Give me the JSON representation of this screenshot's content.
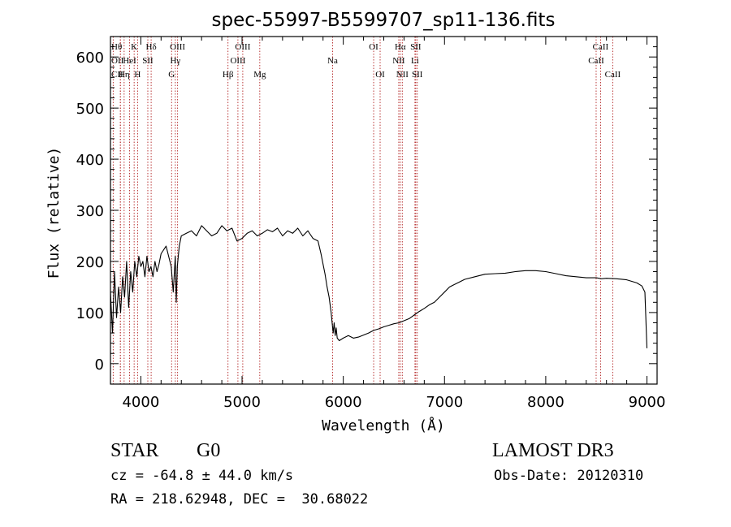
{
  "chart_data": {
    "type": "line",
    "title": "spec-55997-B5599707_sp11-136.fits",
    "xlabel": "Wavelength (Å)",
    "ylabel": "Flux (relative)",
    "xlim": [
      3700,
      9100
    ],
    "ylim": [
      -40,
      640
    ],
    "xticks": [
      4000,
      5000,
      6000,
      7000,
      8000,
      9000
    ],
    "yticks": [
      0,
      100,
      200,
      300,
      400,
      500,
      600
    ],
    "series": [
      {
        "name": "flux",
        "x": [
          3700,
          3720,
          3740,
          3760,
          3780,
          3800,
          3820,
          3840,
          3860,
          3880,
          3900,
          3920,
          3940,
          3960,
          3980,
          4000,
          4020,
          4040,
          4060,
          4080,
          4100,
          4120,
          4140,
          4160,
          4180,
          4200,
          4250,
          4300,
          4320,
          4340,
          4350,
          4360,
          4380,
          4400,
          4450,
          4500,
          4550,
          4600,
          4650,
          4700,
          4750,
          4800,
          4850,
          4900,
          4950,
          5000,
          5050,
          5100,
          5150,
          5200,
          5250,
          5300,
          5350,
          5400,
          5450,
          5500,
          5550,
          5600,
          5650,
          5700,
          5750,
          5780,
          5800,
          5820,
          5840,
          5860,
          5880,
          5890,
          5900,
          5910,
          5920,
          5930,
          5940,
          5960,
          6000,
          6050,
          6100,
          6150,
          6200,
          6250,
          6300,
          6350,
          6400,
          6450,
          6500,
          6550,
          6600,
          6650,
          6700,
          6750,
          6800,
          6850,
          6900,
          6950,
          7000,
          7050,
          7100,
          7150,
          7200,
          7300,
          7400,
          7500,
          7600,
          7700,
          7800,
          7900,
          8000,
          8100,
          8200,
          8300,
          8400,
          8500,
          8550,
          8600,
          8700,
          8800,
          8900,
          8950,
          8980,
          9000
        ],
        "values": [
          140,
          60,
          180,
          90,
          150,
          100,
          170,
          130,
          200,
          110,
          180,
          140,
          200,
          170,
          210,
          190,
          200,
          170,
          210,
          180,
          190,
          170,
          200,
          180,
          195,
          215,
          230,
          190,
          140,
          210,
          120,
          190,
          230,
          250,
          255,
          260,
          250,
          270,
          260,
          250,
          255,
          270,
          260,
          265,
          240,
          245,
          255,
          260,
          250,
          255,
          262,
          258,
          265,
          250,
          260,
          255,
          265,
          250,
          260,
          245,
          240,
          215,
          195,
          175,
          150,
          130,
          100,
          80,
          60,
          80,
          55,
          70,
          50,
          45,
          50,
          55,
          50,
          52,
          56,
          60,
          65,
          68,
          72,
          75,
          78,
          80,
          84,
          88,
          95,
          102,
          108,
          115,
          120,
          130,
          140,
          150,
          155,
          160,
          165,
          170,
          175,
          176,
          177,
          180,
          182,
          182,
          180,
          176,
          172,
          170,
          168,
          168,
          166,
          167,
          166,
          164,
          158,
          152,
          140,
          30
        ]
      }
    ],
    "lines": [
      {
        "name": "OII",
        "x": 3727,
        "row": 1,
        "side": "left"
      },
      {
        "name": "Hθ",
        "x": 3798,
        "row": 0,
        "side": "left"
      },
      {
        "name": "CII",
        "x": 3798,
        "row": 2,
        "side": "left"
      },
      {
        "name": "Hη",
        "x": 3835,
        "row": 2,
        "side": "center"
      },
      {
        "name": "HeI",
        "x": 3889,
        "row": 1,
        "side": "center"
      },
      {
        "name": "K",
        "x": 3934,
        "row": 0,
        "side": "center"
      },
      {
        "name": "H",
        "x": 3968,
        "row": 2,
        "side": "center"
      },
      {
        "name": "SII",
        "x": 4069,
        "row": 1,
        "side": "center"
      },
      {
        "name": "Hδ",
        "x": 4102,
        "row": 0,
        "side": "center"
      },
      {
        "name": "G",
        "x": 4304,
        "row": 2,
        "side": "center"
      },
      {
        "name": "Hγ",
        "x": 4341,
        "row": 1,
        "side": "center"
      },
      {
        "name": "OIII",
        "x": 4363,
        "row": 0,
        "side": "center"
      },
      {
        "name": "Hβ",
        "x": 4861,
        "row": 2,
        "side": "center"
      },
      {
        "name": "OIII",
        "x": 4959,
        "row": 1,
        "side": "center"
      },
      {
        "name": "OIII",
        "x": 5007,
        "row": 0,
        "side": "center"
      },
      {
        "name": "Mg",
        "x": 5175,
        "row": 2,
        "side": "center"
      },
      {
        "name": "Na",
        "x": 5894,
        "row": 1,
        "side": "center"
      },
      {
        "name": "OI",
        "x": 6300,
        "row": 0,
        "side": "center"
      },
      {
        "name": "OI",
        "x": 6364,
        "row": 2,
        "side": "center"
      },
      {
        "name": "NII",
        "x": 6548,
        "row": 1,
        "side": "center"
      },
      {
        "name": "Hα",
        "x": 6563,
        "row": 0,
        "side": "center"
      },
      {
        "name": "NII",
        "x": 6583,
        "row": 2,
        "side": "center"
      },
      {
        "name": "Li",
        "x": 6708,
        "row": 1,
        "side": "center"
      },
      {
        "name": "SII",
        "x": 6716,
        "row": 0,
        "side": "center"
      },
      {
        "name": "SII",
        "x": 6731,
        "row": 2,
        "side": "center"
      },
      {
        "name": "CaII",
        "x": 8498,
        "row": 1,
        "side": "center"
      },
      {
        "name": "CaII",
        "x": 8542,
        "row": 0,
        "side": "center"
      },
      {
        "name": "CaII",
        "x": 8662,
        "row": 2,
        "side": "center"
      }
    ],
    "line_color": "#b22222",
    "spectrum_color": "#000000"
  },
  "info": {
    "object_class": "STAR",
    "subclass": "G0",
    "survey": "LAMOST DR3",
    "redshift": "cz = -64.8 ± 44.0 km/s",
    "obs_date": "Obs-Date: 20120310",
    "coords": "RA = 218.62948, DEC =  30.68022"
  }
}
